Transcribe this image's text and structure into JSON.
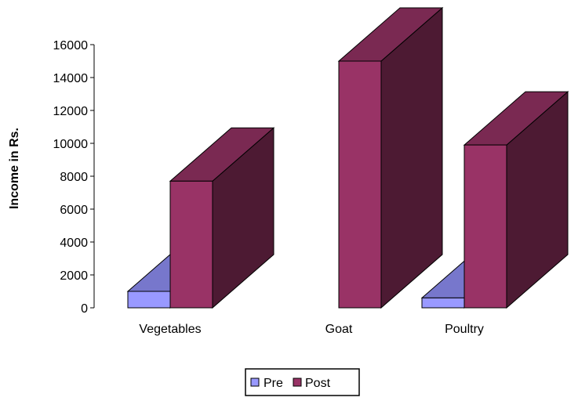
{
  "chart_data": {
    "type": "bar",
    "three_d": true,
    "categories": [
      "Vegetables",
      "Goat",
      "Poultry"
    ],
    "series": [
      {
        "name": "Pre",
        "values": [
          1000,
          0,
          600
        ],
        "color": "#9999ff",
        "side_color": "#7777cc",
        "top_color": "#7777cc"
      },
      {
        "name": "Post",
        "values": [
          7700,
          15000,
          9900
        ],
        "color": "#993366",
        "side_color": "#4d1a33",
        "top_color": "#7a2952"
      }
    ],
    "ylabel": "Income in Rs.",
    "ylim": [
      0,
      16000
    ],
    "yticks": [
      "0",
      "2000",
      "4000",
      "6000",
      "8000",
      "10000",
      "12000",
      "14000",
      "16000"
    ],
    "grid": false,
    "legend_position": "bottom"
  }
}
